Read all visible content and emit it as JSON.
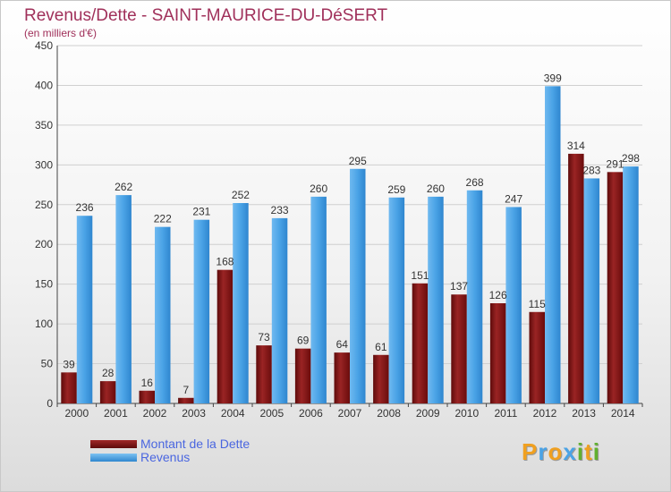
{
  "header": {
    "title": "Revenus/Dette - SAINT-MAURICE-DU-DéSERT",
    "subtitle": "(en milliers d'€)"
  },
  "chart_data": {
    "type": "bar",
    "title": "Revenus/Dette - SAINT-MAURICE-DU-DéSERT",
    "subtitle": "(en milliers d'€)",
    "xlabel": "",
    "ylabel": "",
    "ylim": [
      0,
      450
    ],
    "yticks": [
      0,
      50,
      100,
      150,
      200,
      250,
      300,
      350,
      400,
      450
    ],
    "grid": true,
    "legend_position": "bottom-left",
    "categories": [
      "2000",
      "2001",
      "2002",
      "2003",
      "2004",
      "2005",
      "2006",
      "2007",
      "2008",
      "2009",
      "2010",
      "2011",
      "2012",
      "2013",
      "2014"
    ],
    "series": [
      {
        "name": "Montant de la Dette",
        "color": "#7a1010",
        "values": [
          39,
          28,
          16,
          7,
          168,
          73,
          69,
          64,
          61,
          151,
          137,
          126,
          115,
          314,
          291
        ],
        "labels": [
          "39",
          "28",
          "16",
          "7",
          "168",
          "73",
          "69",
          "64",
          "61",
          "151",
          "137",
          "126",
          "115",
          "314",
          "291"
        ]
      },
      {
        "name": "Revenus",
        "color": "#4aa3e6",
        "values": [
          236,
          262,
          222,
          231,
          252,
          233,
          260,
          295,
          259,
          260,
          268,
          247,
          399,
          283,
          298
        ],
        "labels": [
          "236",
          "262",
          "222",
          "231",
          "252",
          "233",
          "260",
          "295",
          "259",
          "260",
          "268",
          "247",
          "399",
          "283",
          "298"
        ]
      }
    ]
  },
  "legend": {
    "items": [
      {
        "label": "Montant de la Dette",
        "color": "#7a1010"
      },
      {
        "label": "Revenus",
        "color": "#4aa3e6"
      }
    ]
  },
  "logo": {
    "letters": [
      "P",
      "r",
      "o",
      "x",
      "i",
      "t",
      "i"
    ],
    "colors": [
      "#f0a020",
      "#4aa3e6",
      "#f0a020",
      "#4aa3e6",
      "#60b030",
      "#f0a020",
      "#60b030"
    ]
  }
}
